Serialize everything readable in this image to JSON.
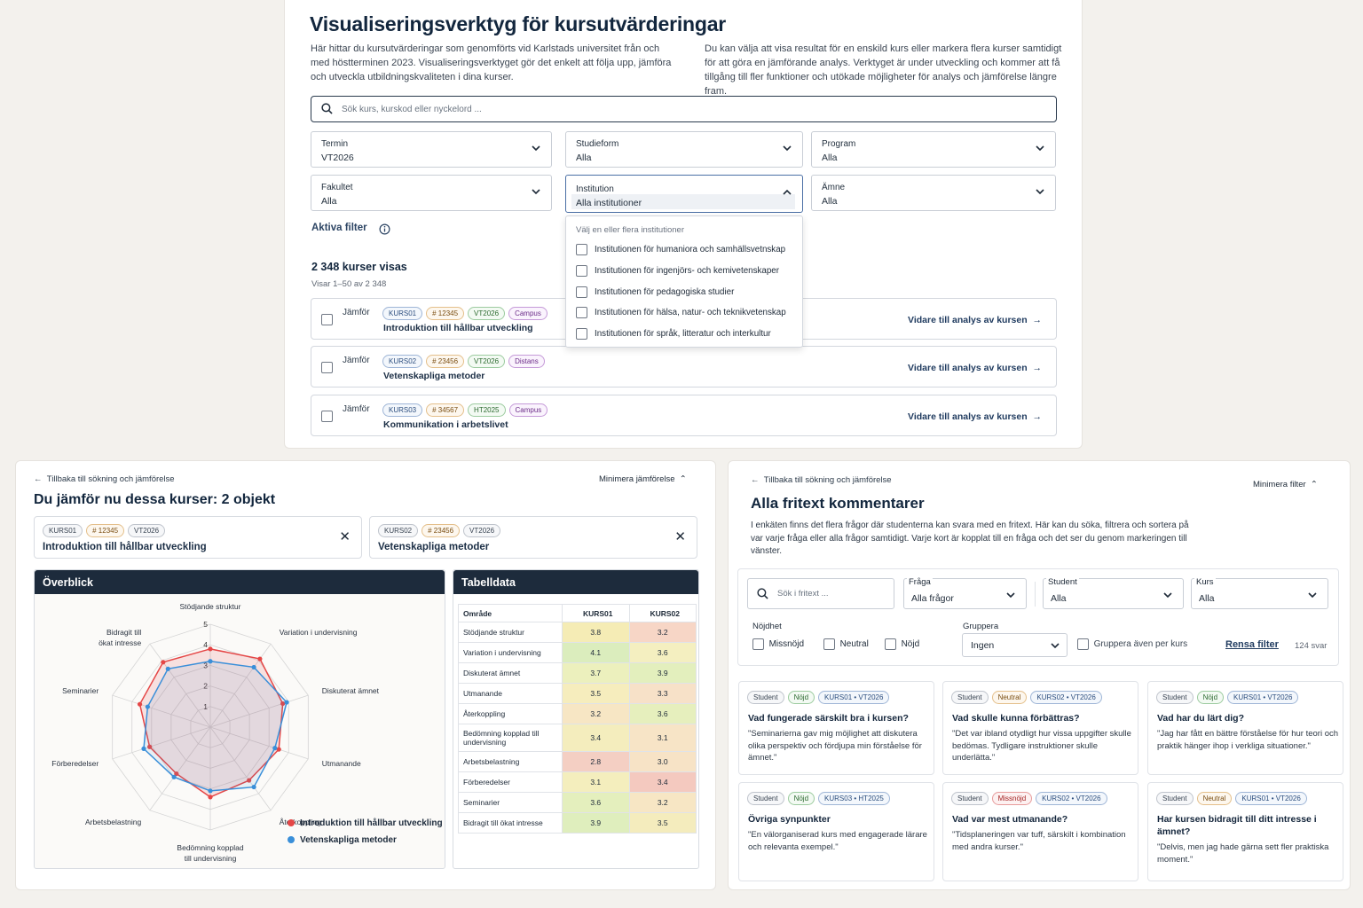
{
  "top": {
    "title": "Visualiseringsverktyg för kursutvärderingar",
    "intro_left": "Här hittar du kursutvärderingar som genomförts vid Karlstads universitet från och med höstterminen 2023. Visualiseringsverktyget gör det enkelt att följa upp, jämföra och utveckla utbildningskvaliteten i dina kurser.",
    "intro_right": "Du kan välja att visa resultat för en enskild kurs eller markera flera kurser samtidigt för att göra en jämförande analys. Verktyget är under utveckling och kommer att få tillgång till fler funktioner och utökade möjligheter för analys och jämförelse längre fram.",
    "search_placeholder": "Sök kurs, kurskod eller nyckelord ...",
    "filters": {
      "termin": {
        "label": "Termin",
        "value": "VT2026"
      },
      "studieform": {
        "label": "Studieform",
        "value": "Alla"
      },
      "program": {
        "label": "Program",
        "value": "Alla"
      },
      "fakultet": {
        "label": "Fakultet",
        "value": "Alla"
      },
      "institution": {
        "label": "Institution",
        "value": "Alla institutioner"
      },
      "amne": {
        "label": "Ämne",
        "value": "Alla"
      }
    },
    "dropdown": {
      "hint": "Välj en eller flera institutioner",
      "options": [
        "Institutionen för humaniora och samhällsvetnskap",
        "Institutionen för ingenjörs- och kemivetenskaper",
        "Institutionen för pedagogiska studier",
        "Institutionen för hälsa, natur- och teknikvetenskap",
        "Institutionen för språk, litteratur och interkultur"
      ]
    },
    "aktiva_filter": "Aktiva filter",
    "count": "2 348 kurser visas",
    "showing": "Visar 1–50 av 2 348",
    "compare_label": "Jämför",
    "go_label": "Vidare till analys av kursen",
    "courses": [
      {
        "code": "KURS01",
        "num": "# 12345",
        "term": "VT2026",
        "form": "Campus",
        "name": "Introduktion till hållbar utveckling"
      },
      {
        "code": "KURS02",
        "num": "# 23456",
        "term": "VT2026",
        "form": "Distans",
        "name": "Vetenskapliga metoder"
      },
      {
        "code": "KURS03",
        "num": "# 34567",
        "term": "HT2025",
        "form": "Campus",
        "name": "Kommunikation i arbetslivet"
      }
    ]
  },
  "compare": {
    "back": "Tillbaka till sökning och jämförelse",
    "minimize": "Minimera jämförelse",
    "title": "Du jämför nu dessa kurser: 2 objekt",
    "cards": [
      {
        "code": "KURS01",
        "num": "# 12345",
        "term": "VT2026",
        "name": "Introduktion till hållbar utveckling"
      },
      {
        "code": "KURS02",
        "num": "# 23456",
        "term": "VT2026",
        "name": "Vetenskapliga metoder"
      }
    ],
    "overview_title": "Överblick",
    "table_title": "Tabelldata",
    "table_headers": [
      "Område",
      "KURS01",
      "KURS02"
    ],
    "legend": [
      "Introduktion till hållbar utveckling",
      "Vetenskapliga metoder"
    ],
    "colors": {
      "kurs01": "#e54646",
      "kurs02": "#3a8fd9"
    }
  },
  "chart_data": {
    "type": "radar",
    "categories": [
      "Stödjande struktur",
      "Variation i undervisning",
      "Diskuterat ämnet",
      "Utmanande",
      "Återkoppling",
      "Bedömning kopplad till undervisning",
      "Arbetsbelastning",
      "Förberedelser",
      "Seminarier",
      "Bidragit till ökat intresse"
    ],
    "radial_ticks": [
      "1",
      "2",
      "3",
      "4",
      "5"
    ],
    "range": [
      0,
      5
    ],
    "series": [
      {
        "name": "Introduktion till hållbar utveckling",
        "values": [
          3.8,
          4.1,
          3.7,
          3.5,
          3.2,
          3.4,
          2.8,
          3.1,
          3.6,
          3.9
        ]
      },
      {
        "name": "Vetenskapliga metoder",
        "values": [
          3.2,
          3.6,
          3.9,
          3.3,
          3.6,
          3.1,
          3.0,
          3.4,
          3.2,
          3.5
        ]
      }
    ],
    "legend_position": "bottom-right"
  },
  "table_rows": [
    {
      "label": "Stödjande struktur",
      "a": "3.8",
      "b": "3.2",
      "ca": "#f5ecb5",
      "cb": "#f7d6c6"
    },
    {
      "label": "Variation i undervisning",
      "a": "4.1",
      "b": "3.6",
      "ca": "#dbedbd",
      "cb": "#f4efc0"
    },
    {
      "label": "Diskuterat ämnet",
      "a": "3.7",
      "b": "3.9",
      "ca": "#ecf0bd",
      "cb": "#e3efbd"
    },
    {
      "label": "Utmanande",
      "a": "3.5",
      "b": "3.3",
      "ca": "#f6edbd",
      "cb": "#f7e1c8"
    },
    {
      "label": "Återkoppling",
      "a": "3.2",
      "b": "3.6",
      "ca": "#f7e6c4",
      "cb": "#e6efbd"
    },
    {
      "label": "Bedömning kopplad till undervisning",
      "a": "3.4",
      "b": "3.1",
      "ca": "#f4edbd",
      "cb": "#f7e4c6"
    },
    {
      "label": "Arbetsbelastning",
      "a": "2.8",
      "b": "3.0",
      "ca": "#f4cfc3",
      "cb": "#f7e3c6"
    },
    {
      "label": "Förberedelser",
      "a": "3.1",
      "b": "3.4",
      "ca": "#f4eebd",
      "cb": "#f4c9bf"
    },
    {
      "label": "Seminarier",
      "a": "3.6",
      "b": "3.2",
      "ca": "#e4efbd",
      "cb": "#f7e6c4"
    },
    {
      "label": "Bidragit till ökat intresse",
      "a": "3.9",
      "b": "3.5",
      "ca": "#dfeebd",
      "cb": "#f4ecbd"
    }
  ],
  "fritext": {
    "back": "Tillbaka till sökning och jämförelse",
    "minimize": "Minimera filter",
    "title": "Alla fritext kommentarer",
    "desc": "I enkäten finns det flera frågor där studenterna kan svara med en fritext. Här kan du söka, filtrera och sortera på var varje fråga eller alla frågor samtidigt. Varje kort är kopplat till en fråga och det ser du genom markeringen till vänster.",
    "search_placeholder": "Sök i fritext ...",
    "fraga": {
      "label": "Fråga",
      "value": "Alla frågor"
    },
    "student": {
      "label": "Student",
      "value": "Alla"
    },
    "kurs": {
      "label": "Kurs",
      "value": "Alla"
    },
    "nojdhet_label": "Nöjdhet",
    "nojdhet_options": [
      "Missnöjd",
      "Neutral",
      "Nöjd"
    ],
    "gruppera": {
      "label": "Gruppera",
      "value": "Ingen"
    },
    "gruppera_kurs": "Gruppera även per kurs",
    "rensa": "Rensa filter",
    "svar": "124 svar",
    "cards": [
      {
        "who": "Student",
        "mood": "Nöjd",
        "course": "KURS01 • VT2026",
        "q": "Vad fungerade särskilt bra i kursen?",
        "text": "\"Seminarierna gav mig möjlighet att diskutera olika perspektiv och fördjupa min förståelse för ämnet.\""
      },
      {
        "who": "Student",
        "mood": "Neutral",
        "course": "KURS02 • VT2026",
        "q": "Vad skulle kunna förbättras?",
        "text": "\"Det var ibland otydligt hur vissa uppgifter skulle bedömas. Tydligare instruktioner skulle underlätta.\""
      },
      {
        "who": "Student",
        "mood": "Nöjd",
        "course": "KURS01 • VT2026",
        "q": "Vad har du lärt dig?",
        "text": "\"Jag har fått en bättre förståelse för hur teori och praktik hänger ihop i verkliga situationer.\""
      },
      {
        "who": "Student",
        "mood": "Nöjd",
        "course": "KURS03 • HT2025",
        "q": "Övriga synpunkter",
        "text": "\"En välorganiserad kurs med engagerade lärare och relevanta exempel.\""
      },
      {
        "who": "Student",
        "mood": "Missnöjd",
        "course": "KURS02 • VT2026",
        "q": "Vad var mest utmanande?",
        "text": "\"Tidsplaneringen var tuff, särskilt i kombination med andra kurser.\""
      },
      {
        "who": "Student",
        "mood": "Neutral",
        "course": "KURS01 • VT2026",
        "q": "Har kursen bidragit till ditt intresse i ämnet?",
        "text": "\"Delvis, men jag hade gärna sett fler praktiska moment.\""
      }
    ]
  }
}
